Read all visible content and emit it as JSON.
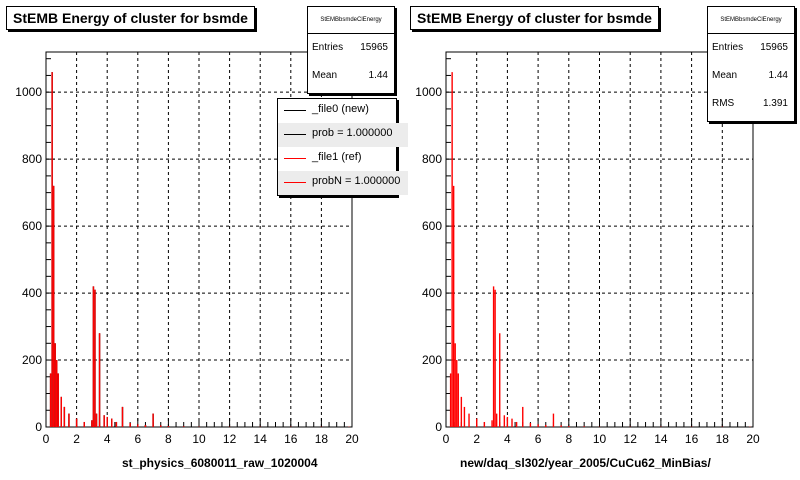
{
  "pads": [
    {
      "title": "StEMB Energy of cluster for bsmde",
      "stats": {
        "name": "StEMBbsmdeClEnergy",
        "rows": [
          {
            "label": "Entries",
            "value": "15965"
          },
          {
            "label": "Mean",
            "value": "1.44"
          }
        ]
      },
      "legend": {
        "entries": [
          {
            "label": "_file0 (new)",
            "color": "#000000"
          },
          {
            "label": "prob = 1.000000",
            "color": "#000000"
          },
          {
            "label": "_file1 (ref)",
            "color": "#ff0000"
          },
          {
            "label": "probN = 1.000000",
            "color": "#ff0000"
          }
        ]
      },
      "xlabel": "st_physics_6080011_raw_1020004"
    },
    {
      "title": "StEMB Energy of cluster for bsmde",
      "stats": {
        "name": "StEMBbsmdeClEnergy",
        "rows": [
          {
            "label": "Entries",
            "value": "15965"
          },
          {
            "label": "Mean",
            "value": "1.44"
          },
          {
            "label": "RMS",
            "value": "1.391"
          }
        ]
      },
      "xlabel": "new/daq_sl302/year_2005/CuCu62_MinBias/"
    }
  ],
  "chart_data": [
    {
      "type": "bar",
      "title": "StEMB Energy of cluster for bsmde",
      "xlabel": "st_physics_6080011_raw_1020004",
      "ylabel": "",
      "xlim": [
        0,
        20
      ],
      "ylim": [
        0,
        1120
      ],
      "xticks": [
        0,
        2,
        4,
        6,
        8,
        10,
        12,
        14,
        16,
        18,
        20
      ],
      "yticks": [
        0,
        200,
        400,
        600,
        800,
        1000
      ],
      "grid": true,
      "legend_position": "top-right",
      "series": [
        {
          "name": "_file0 (new)",
          "color": "#000000",
          "x": [
            0.3,
            0.4,
            0.5,
            0.6,
            0.7,
            0.8,
            1.0,
            1.2,
            1.5,
            2.0,
            2.5,
            3.0,
            3.1,
            3.2,
            3.3,
            3.5,
            3.8,
            4.0,
            4.3,
            4.6,
            5.0,
            5.5,
            6.0,
            6.5,
            7.0,
            7.5,
            8.0,
            9.0,
            10.0,
            12.0,
            14.0,
            16.0,
            18.0,
            19.8
          ],
          "values": [
            160,
            1060,
            720,
            250,
            200,
            160,
            90,
            60,
            40,
            25,
            15,
            20,
            420,
            410,
            40,
            280,
            35,
            30,
            25,
            15,
            60,
            12,
            8,
            6,
            40,
            5,
            3,
            2,
            1,
            1,
            1,
            1,
            1,
            1
          ]
        },
        {
          "name": "_file1 (ref)",
          "color": "#ff0000",
          "x": [
            0.3,
            0.4,
            0.5,
            0.6,
            0.7,
            0.8,
            1.0,
            1.2,
            1.5,
            2.0,
            2.5,
            3.0,
            3.1,
            3.2,
            3.3,
            3.5,
            3.8,
            4.0,
            4.3,
            4.6,
            5.0,
            5.5,
            6.0,
            6.5,
            7.0,
            7.5,
            8.0,
            9.0,
            10.0,
            12.0,
            14.0,
            16.0,
            18.0,
            19.8
          ],
          "values": [
            160,
            1060,
            720,
            250,
            200,
            160,
            90,
            60,
            40,
            25,
            15,
            20,
            420,
            410,
            40,
            280,
            35,
            30,
            25,
            15,
            60,
            12,
            8,
            6,
            40,
            5,
            3,
            2,
            1,
            1,
            1,
            1,
            1,
            1
          ]
        }
      ]
    },
    {
      "type": "bar",
      "title": "StEMB Energy of cluster for bsmde",
      "xlabel": "new/daq_sl302/year_2005/CuCu62_MinBias/",
      "ylabel": "",
      "xlim": [
        0,
        20
      ],
      "ylim": [
        0,
        1120
      ],
      "xticks": [
        0,
        2,
        4,
        6,
        8,
        10,
        12,
        14,
        16,
        18,
        20
      ],
      "yticks": [
        0,
        200,
        400,
        600,
        800,
        1000
      ],
      "grid": true,
      "series": [
        {
          "color": "#ff0000",
          "x": [
            0.3,
            0.4,
            0.5,
            0.6,
            0.7,
            0.8,
            1.0,
            1.2,
            1.5,
            2.0,
            2.5,
            3.0,
            3.1,
            3.2,
            3.3,
            3.5,
            3.8,
            4.0,
            4.3,
            4.6,
            5.0,
            5.5,
            6.0,
            6.5,
            7.0,
            7.5,
            8.0,
            9.0,
            10.0,
            12.0,
            14.0,
            16.0,
            18.0,
            19.8
          ],
          "values": [
            160,
            1060,
            720,
            250,
            200,
            160,
            90,
            60,
            40,
            25,
            15,
            20,
            420,
            410,
            40,
            280,
            35,
            30,
            25,
            15,
            60,
            12,
            8,
            6,
            40,
            5,
            3,
            2,
            1,
            1,
            1,
            1,
            1,
            1
          ]
        }
      ]
    }
  ]
}
